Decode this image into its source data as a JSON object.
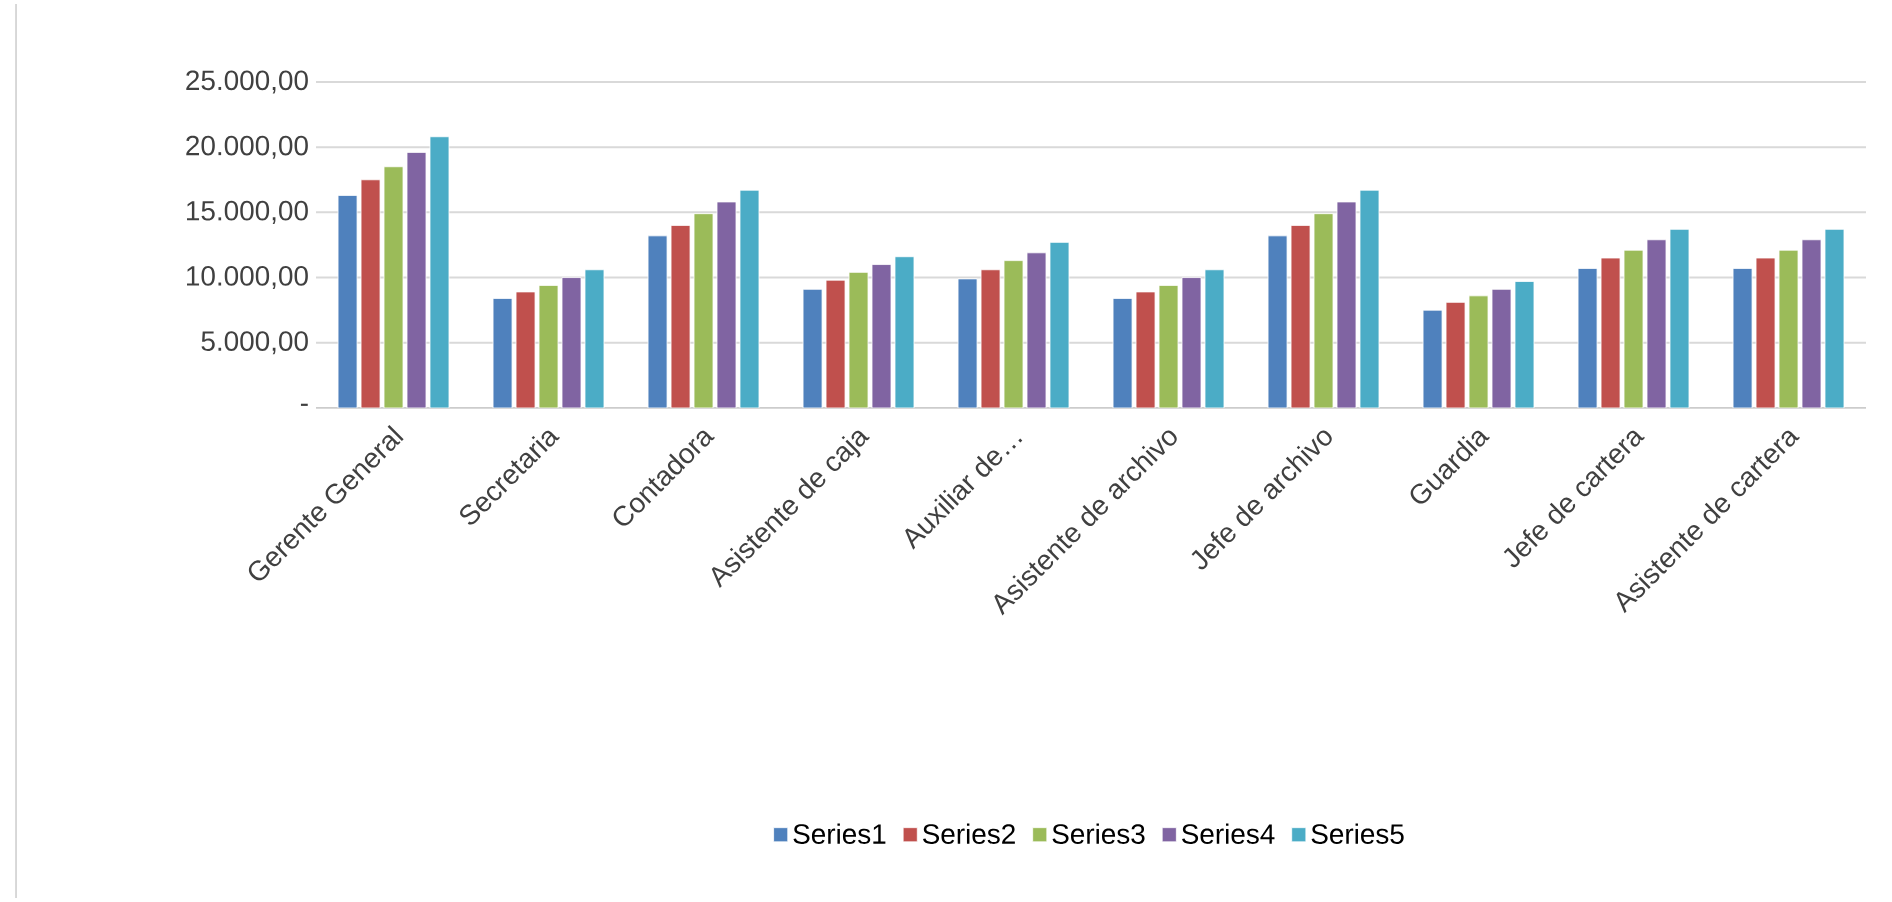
{
  "chart_data": {
    "type": "bar",
    "categories": [
      "Gerente General",
      "Secretaria",
      "Contadora",
      "Asistente de caja",
      "Auxiliar de…",
      "Asistente de archivo",
      "Jefe de archivo",
      "Guardia",
      "Jefe de cartera",
      "Asistente de cartera"
    ],
    "series": [
      {
        "name": "Series1",
        "color": "#4f81bd",
        "values": [
          16300,
          8400,
          13200,
          9100,
          9900,
          8400,
          13200,
          7500,
          10700,
          10700
        ]
      },
      {
        "name": "Series2",
        "color": "#c0504d",
        "values": [
          17500,
          8900,
          14000,
          9800,
          10600,
          8900,
          14000,
          8100,
          11500,
          11500
        ]
      },
      {
        "name": "Series3",
        "color": "#9bbb59",
        "values": [
          18500,
          9400,
          14900,
          10400,
          11300,
          9400,
          14900,
          8600,
          12100,
          12100
        ]
      },
      {
        "name": "Series4",
        "color": "#8064a2",
        "values": [
          19600,
          10000,
          15800,
          11000,
          11900,
          10000,
          15800,
          9100,
          12900,
          12900
        ]
      },
      {
        "name": "Series5",
        "color": "#4bacc6",
        "values": [
          20800,
          10600,
          16700,
          11600,
          12700,
          10600,
          16700,
          9700,
          13700,
          13700
        ]
      }
    ],
    "ylim": [
      0,
      25000
    ],
    "yticks": [
      {
        "value": 0,
        "label": "-"
      },
      {
        "value": 5000,
        "label": "5.000,00"
      },
      {
        "value": 10000,
        "label": "10.000,00"
      },
      {
        "value": 15000,
        "label": "15.000,00"
      },
      {
        "value": 20000,
        "label": "20.000,00"
      },
      {
        "value": 25000,
        "label": "25.000,00"
      }
    ],
    "grid": "y",
    "legend": "bottom"
  }
}
